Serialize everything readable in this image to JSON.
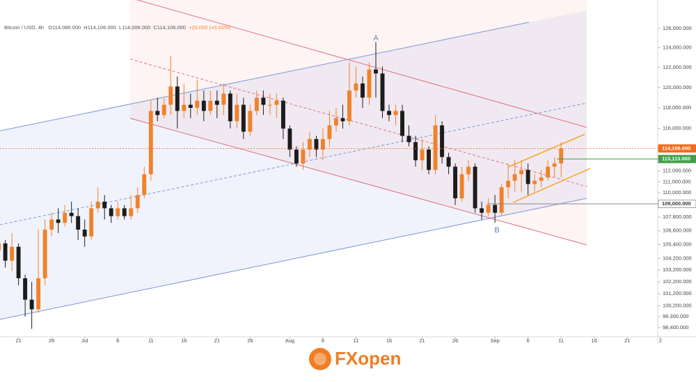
{
  "header": {
    "symbol": "Bitcoin / USD, 4h",
    "open": "O114,086.000",
    "high": "H114,106.000",
    "low": "L114,006.000",
    "close": "C114,106.000",
    "change": "+20.000 (+0.02%)"
  },
  "brand": "FXopen",
  "chart_data": {
    "type": "candlestick",
    "log_scale": true,
    "up_color": "#f0822a",
    "down_color": "#1c1c1c",
    "x": [
      169,
      170,
      171,
      172,
      173,
      174,
      175,
      176,
      177,
      178,
      179,
      180,
      181,
      182,
      183,
      184,
      185,
      186,
      187,
      188,
      189,
      190,
      191,
      192,
      193,
      194,
      195,
      196,
      197,
      198,
      199,
      200,
      201,
      202,
      203,
      204,
      205,
      206,
      207,
      208,
      209,
      210,
      211,
      212,
      213,
      214,
      215,
      216,
      217,
      218,
      219,
      220,
      221,
      222,
      223,
      224,
      225,
      226,
      227,
      228,
      229,
      230,
      231,
      232,
      233,
      234,
      235,
      236,
      237,
      238,
      239,
      240,
      241,
      242,
      243,
      244,
      245,
      246,
      247,
      248,
      249,
      250,
      251,
      252,
      253,
      254
    ],
    "open": [
      104900,
      105500,
      104000,
      105200,
      102500,
      100700,
      99900,
      102500,
      106700,
      107600,
      107300,
      108200,
      107900,
      106700,
      106100,
      108600,
      109200,
      108600,
      107900,
      108600,
      107900,
      108600,
      109800,
      111700,
      117700,
      117300,
      118300,
      120100,
      117700,
      118300,
      118000,
      118700,
      117700,
      118700,
      118300,
      119400,
      116700,
      118300,
      115700,
      117700,
      119000,
      118300,
      118300,
      118700,
      116000,
      114000,
      112700,
      114000,
      115000,
      114000,
      115000,
      116300,
      117000,
      116700,
      119700,
      120400,
      119000,
      121800,
      121400,
      117700,
      117300,
      117700,
      115300,
      114700,
      113000,
      114000,
      112100,
      116300,
      113300,
      112400,
      109500,
      111700,
      112400,
      108600,
      108200,
      108900,
      108200,
      110500,
      111100,
      111700,
      112100,
      110800,
      111100,
      111400,
      112400,
      112700
    ],
    "high": [
      106100,
      105800,
      106400,
      105500,
      102800,
      102200,
      106700,
      107600,
      108200,
      108600,
      108900,
      109200,
      108600,
      107600,
      109200,
      110500,
      109800,
      108900,
      109200,
      108900,
      109800,
      110500,
      112400,
      118700,
      119000,
      119000,
      123200,
      121100,
      120400,
      119400,
      120800,
      119700,
      119700,
      119700,
      120400,
      119700,
      119400,
      119000,
      118300,
      119700,
      119700,
      119400,
      119400,
      119000,
      116300,
      114300,
      114700,
      115700,
      115300,
      116000,
      117700,
      118000,
      118300,
      122500,
      122100,
      121100,
      122500,
      124600,
      122100,
      118300,
      118300,
      118300,
      116300,
      115300,
      115000,
      114300,
      117300,
      116700,
      113700,
      112700,
      112400,
      113000,
      112700,
      109200,
      109500,
      109800,
      110800,
      112700,
      113000,
      113000,
      112700,
      111700,
      112100,
      113000,
      113300,
      114700
    ],
    "low": [
      103700,
      103400,
      103100,
      101900,
      99300,
      98300,
      99600,
      101900,
      106100,
      106400,
      107000,
      107300,
      105800,
      105200,
      105800,
      108200,
      107600,
      107300,
      107600,
      107600,
      107600,
      108200,
      109500,
      111100,
      116700,
      117000,
      117300,
      116000,
      117000,
      117000,
      117300,
      116700,
      117300,
      117000,
      117300,
      116000,
      116000,
      115000,
      115300,
      117300,
      117300,
      117300,
      117000,
      115000,
      113300,
      112400,
      112100,
      113300,
      113300,
      113000,
      114300,
      115700,
      116000,
      116300,
      119000,
      118000,
      118300,
      119000,
      117000,
      116700,
      116300,
      114700,
      114300,
      112400,
      112100,
      111700,
      111700,
      112700,
      111700,
      108900,
      109200,
      111100,
      108200,
      107600,
      107900,
      107300,
      107900,
      109500,
      110100,
      110100,
      109800,
      110100,
      110500,
      111100,
      111400,
      111400
    ],
    "close": [
      105500,
      104000,
      105200,
      102500,
      100700,
      99900,
      102500,
      106700,
      107600,
      107300,
      108200,
      107900,
      106700,
      106100,
      108600,
      109200,
      108600,
      107900,
      108600,
      107900,
      108600,
      109800,
      111700,
      117700,
      117300,
      118300,
      120100,
      117700,
      118300,
      118000,
      118700,
      117700,
      118700,
      118300,
      119400,
      116700,
      118300,
      115700,
      117700,
      119000,
      118300,
      118300,
      118700,
      116000,
      114000,
      112700,
      114000,
      115000,
      114000,
      115000,
      116300,
      117000,
      116700,
      119700,
      120400,
      119000,
      121800,
      121400,
      117700,
      117300,
      117700,
      115300,
      114700,
      113000,
      114000,
      112100,
      116300,
      113300,
      112400,
      109500,
      111700,
      112400,
      108600,
      108200,
      108900,
      108200,
      110500,
      111100,
      111700,
      112100,
      110800,
      111100,
      111400,
      112400,
      112700,
      114106
    ],
    "xlim": [
      169.2,
      268.6
    ],
    "xticks": [
      {
        "value": 172,
        "label": "21"
      },
      {
        "value": 177,
        "label": "26"
      },
      {
        "value": 182,
        "label": "Jul"
      },
      {
        "value": 187,
        "label": "6"
      },
      {
        "value": 192,
        "label": "11"
      },
      {
        "value": 197,
        "label": "16"
      },
      {
        "value": 202,
        "label": "21"
      },
      {
        "value": 207,
        "label": "26"
      },
      {
        "value": 213,
        "label": "Aug"
      },
      {
        "value": 218,
        "label": "6"
      },
      {
        "value": 223,
        "label": "11"
      },
      {
        "value": 228,
        "label": "16"
      },
      {
        "value": 233,
        "label": "21"
      },
      {
        "value": 238,
        "label": "26"
      },
      {
        "value": 244,
        "label": "Sep"
      },
      {
        "value": 249,
        "label": "6"
      },
      {
        "value": 254,
        "label": "11"
      },
      {
        "value": 259,
        "label": "16"
      },
      {
        "value": 264,
        "label": "21"
      },
      {
        "value": 269,
        "label": "2"
      }
    ],
    "ylim": [
      97660,
      129000
    ],
    "yticks": [
      {
        "value": 126000,
        "label": "126,000.000"
      },
      {
        "value": 124000,
        "label": "124,000.000"
      },
      {
        "value": 122000,
        "label": "122,000.000"
      },
      {
        "value": 120000,
        "label": "120,000.000"
      },
      {
        "value": 118000,
        "label": "118,000.000"
      },
      {
        "value": 116000,
        "label": "116,000.000"
      },
      {
        "value": 112000,
        "label": "112,000.000"
      },
      {
        "value": 111000,
        "label": "111,000.000"
      },
      {
        "value": 110000,
        "label": "110,000.000"
      },
      {
        "value": 107800,
        "label": "107,800.000"
      },
      {
        "value": 106600,
        "label": "106,600.000"
      },
      {
        "value": 105400,
        "label": "105,400.000"
      },
      {
        "value": 104200,
        "label": "104,200.000"
      },
      {
        "value": 103200,
        "label": "103,200.000"
      },
      {
        "value": 102200,
        "label": "102,200.000"
      },
      {
        "value": 101200,
        "label": "101,200.000"
      },
      {
        "value": 100200,
        "label": "100,200.000"
      },
      {
        "value": 99300,
        "label": "99,300.000"
      },
      {
        "value": 98400,
        "label": "98,400.000"
      }
    ],
    "price_lines": [
      {
        "value": 114106,
        "label": "114,106.000",
        "color": "#f26b1d"
      },
      {
        "value": 113113,
        "label": "113,113.000",
        "color": "#43a047"
      },
      {
        "value": 109000,
        "label": "109,000.000",
        "color": "#8a8a8a"
      }
    ],
    "annotations": [
      "A",
      "B"
    ]
  }
}
